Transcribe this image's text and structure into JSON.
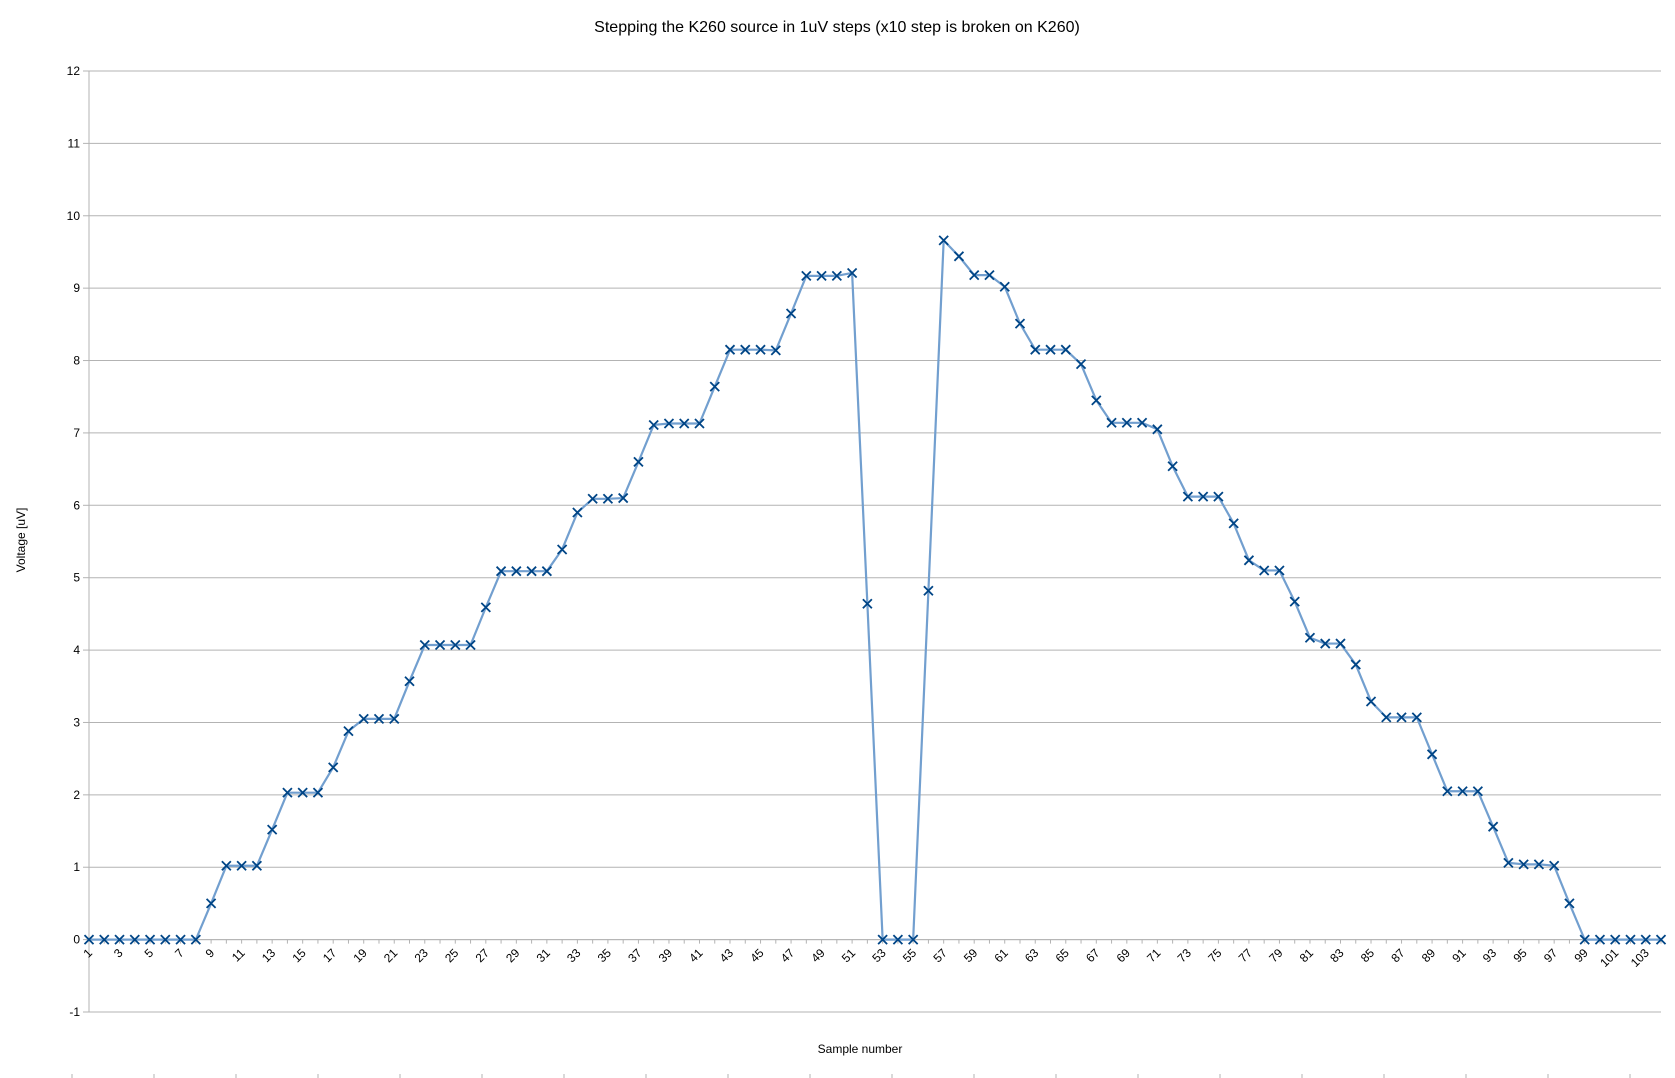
{
  "chart_data": {
    "type": "line",
    "title": "Stepping the K260 source in 1uV steps (x10 step is broken on K260)",
    "xlabel": "Sample number",
    "ylabel": "Voltage [uV]",
    "ylim": [
      -1,
      12
    ],
    "yticks": [
      -1,
      0,
      1,
      2,
      3,
      4,
      5,
      6,
      7,
      8,
      9,
      10,
      11,
      12
    ],
    "xlim": [
      1,
      104
    ],
    "xtick_labels": [
      "1",
      "3",
      "5",
      "7",
      "9",
      "11",
      "13",
      "15",
      "17",
      "19",
      "21",
      "23",
      "25",
      "27",
      "29",
      "31",
      "33",
      "35",
      "37",
      "39",
      "41",
      "43",
      "45",
      "47",
      "49",
      "51",
      "53",
      "55",
      "57",
      "59",
      "61",
      "63",
      "65",
      "67",
      "69",
      "71",
      "73",
      "75",
      "77",
      "79",
      "81",
      "83",
      "85",
      "87",
      "89",
      "91",
      "93",
      "95",
      "97",
      "99",
      "101",
      "103"
    ],
    "grid": true,
    "legend": "none",
    "line_color": "#729fcf",
    "marker_color": "#004586",
    "marker": "x",
    "series": [
      {
        "x": [
          1,
          2,
          3,
          4,
          5,
          6,
          7,
          8,
          9,
          10,
          11,
          12,
          13,
          14,
          15,
          16,
          17,
          18,
          19,
          20,
          21,
          22,
          23,
          24,
          25,
          26,
          27,
          28,
          29,
          30,
          31,
          32,
          33,
          34,
          35,
          36,
          37,
          38,
          39,
          40,
          41,
          42,
          43,
          44,
          45,
          46,
          47,
          48,
          49,
          50,
          51,
          52,
          53,
          54,
          55,
          56,
          57,
          58,
          59,
          60,
          61,
          62,
          63,
          64,
          65,
          66,
          67,
          68,
          69,
          70,
          71,
          72,
          73,
          74,
          75,
          76,
          77,
          78,
          79,
          80,
          81,
          82,
          83,
          84,
          85,
          86,
          87,
          88,
          89,
          90,
          91,
          92,
          93,
          94,
          95,
          96,
          97,
          98,
          99,
          100,
          101,
          102,
          103,
          104
        ],
        "values": [
          0,
          0,
          0,
          0,
          0,
          0,
          0,
          0,
          0.5,
          1.02,
          1.02,
          1.02,
          1.52,
          2.03,
          2.03,
          2.03,
          2.38,
          2.88,
          3.05,
          3.05,
          3.05,
          3.57,
          4.07,
          4.07,
          4.07,
          4.07,
          4.59,
          5.09,
          5.09,
          5.09,
          5.09,
          5.39,
          5.9,
          6.09,
          6.09,
          6.1,
          6.6,
          7.11,
          7.13,
          7.13,
          7.13,
          7.64,
          8.15,
          8.15,
          8.15,
          8.14,
          8.65,
          9.17,
          9.17,
          9.17,
          9.21,
          4.64,
          0,
          0,
          0,
          4.82,
          9.66,
          9.44,
          9.18,
          9.18,
          9.02,
          8.51,
          8.15,
          8.15,
          8.15,
          7.95,
          7.45,
          7.14,
          7.14,
          7.14,
          7.05,
          6.54,
          6.12,
          6.12,
          6.12,
          5.75,
          5.24,
          5.1,
          5.1,
          4.67,
          4.17,
          4.09,
          4.09,
          3.8,
          3.29,
          3.07,
          3.07,
          3.07,
          2.56,
          2.05,
          2.05,
          2.05,
          1.56,
          1.06,
          1.04,
          1.04,
          1.02,
          0.5,
          0,
          0,
          0,
          0,
          0,
          0
        ]
      }
    ]
  }
}
